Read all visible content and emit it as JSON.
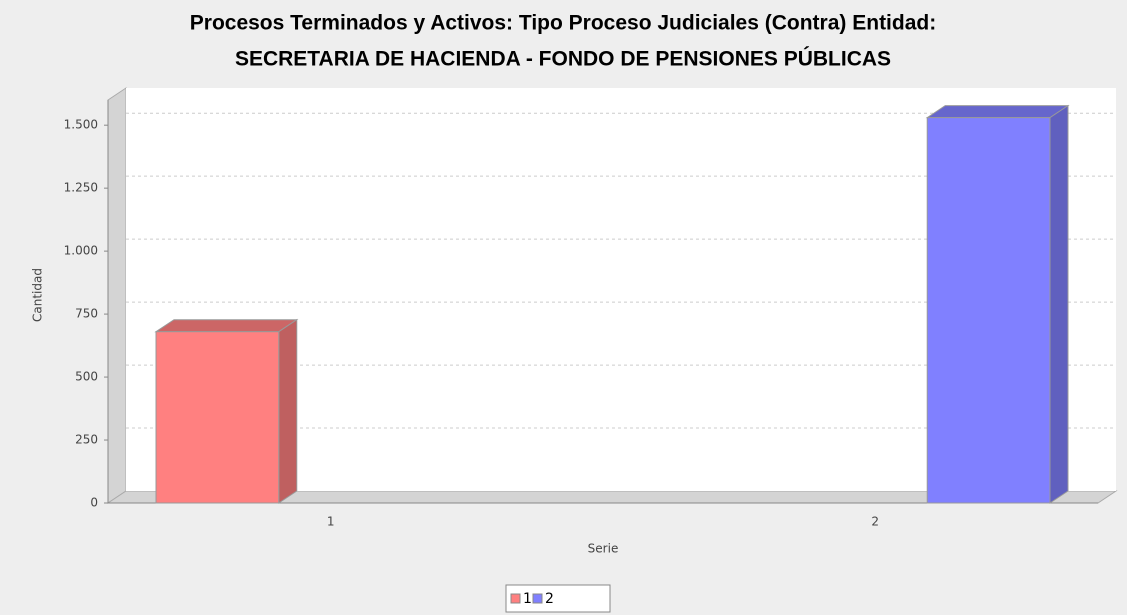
{
  "chart_data": {
    "type": "bar3d",
    "title": [
      "Procesos Terminados y Activos: Tipo Proceso Judiciales (Contra) Entidad:",
      "SECRETARIA DE HACIENDA - FONDO DE PENSIONES PÚBLICAS"
    ],
    "x_label": "Serie",
    "y_label": "Cantidad",
    "categories": [
      "1",
      "2"
    ],
    "series": [
      {
        "name": "1",
        "color": "#ff8080",
        "values": [
          680,
          null
        ]
      },
      {
        "name": "2",
        "color": "#8080ff",
        "values": [
          null,
          1530
        ]
      }
    ],
    "ylim": [
      0,
      1600
    ],
    "yticks": [
      0,
      250,
      500,
      750,
      {
        "value": 1000,
        "label": "1.000"
      },
      {
        "value": 1250,
        "label": "1.250"
      },
      {
        "value": 1500,
        "label": "1.500"
      }
    ],
    "grid": true,
    "legend": "bottom"
  }
}
